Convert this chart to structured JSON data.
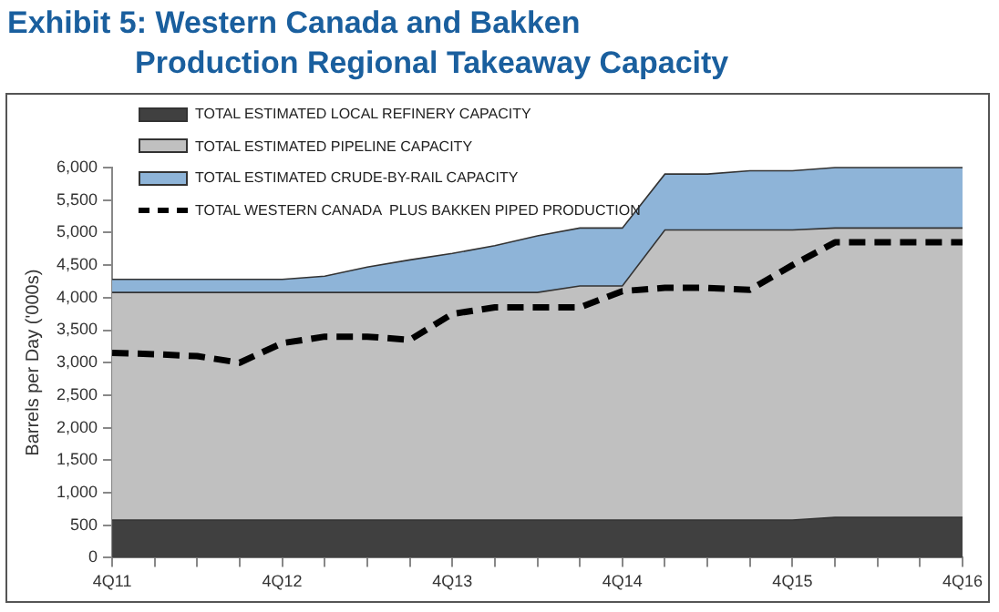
{
  "chart_data": {
    "type": "area",
    "title": "Exhibit 5: Western Canada and Bakken\nProduction Regional Takeaway Capacity",
    "ylabel": "Barrels per Day ('000s)",
    "categories": [
      "4Q11",
      null,
      null,
      null,
      "4Q12",
      null,
      null,
      null,
      "4Q13",
      null,
      null,
      null,
      "4Q14",
      null,
      null,
      null,
      "4Q15",
      null,
      null,
      null,
      "4Q16"
    ],
    "stacked": true,
    "legend": "top left",
    "grid": false,
    "marker": "none",
    "ylim": [
      0,
      6000
    ],
    "yticks": [
      {
        "value": 0,
        "label": "0"
      },
      {
        "value": 500,
        "label": "500"
      },
      {
        "value": 1000,
        "label": "1,000"
      },
      {
        "value": 1500,
        "label": "1,500"
      },
      {
        "value": 2000,
        "label": "2,000"
      },
      {
        "value": 2500,
        "label": "2,500"
      },
      {
        "value": 3000,
        "label": "3,000"
      },
      {
        "value": 3500,
        "label": "3,500"
      },
      {
        "value": 4000,
        "label": "4,000"
      },
      {
        "value": 4500,
        "label": "4,500"
      },
      {
        "value": 5000,
        "label": "5,000"
      },
      {
        "value": 5500,
        "label": "5,500"
      },
      {
        "value": 6000,
        "label": "6,000"
      }
    ],
    "series": [
      {
        "name": "TOTAL ESTIMATED LOCAL REFINERY CAPACITY",
        "color": "#404040",
        "values": [
          580,
          580,
          580,
          580,
          580,
          580,
          580,
          580,
          580,
          580,
          580,
          580,
          580,
          580,
          580,
          580,
          580,
          620,
          620,
          620,
          620
        ]
      },
      {
        "name": "TOTAL ESTIMATED PIPELINE CAPACITY",
        "color": "#c0c0c0",
        "values": [
          3500,
          3500,
          3500,
          3500,
          3500,
          3500,
          3500,
          3500,
          3500,
          3500,
          3500,
          3600,
          3600,
          4460,
          4460,
          4460,
          4460,
          4450,
          4450,
          4450,
          4450
        ]
      },
      {
        "name": "TOTAL ESTIMATED CRUDE-BY-RAIL CAPACITY",
        "color": "#8eb4d8",
        "values": [
          200,
          200,
          200,
          200,
          200,
          250,
          390,
          500,
          600,
          720,
          870,
          890,
          890,
          860,
          860,
          910,
          910,
          930,
          930,
          930,
          930
        ]
      },
      {
        "name": "TOTAL WESTERN CANADA  PLUS BAKKEN PIPED PRODUCTION",
        "type": "line",
        "color": "#000000",
        "line_style": "dashed",
        "values": [
          3150,
          3130,
          3100,
          3000,
          3300,
          3400,
          3400,
          3350,
          3750,
          3850,
          3850,
          3850,
          4100,
          4150,
          4150,
          4120,
          4500,
          4850,
          4850,
          4850,
          4850
        ]
      }
    ]
  }
}
